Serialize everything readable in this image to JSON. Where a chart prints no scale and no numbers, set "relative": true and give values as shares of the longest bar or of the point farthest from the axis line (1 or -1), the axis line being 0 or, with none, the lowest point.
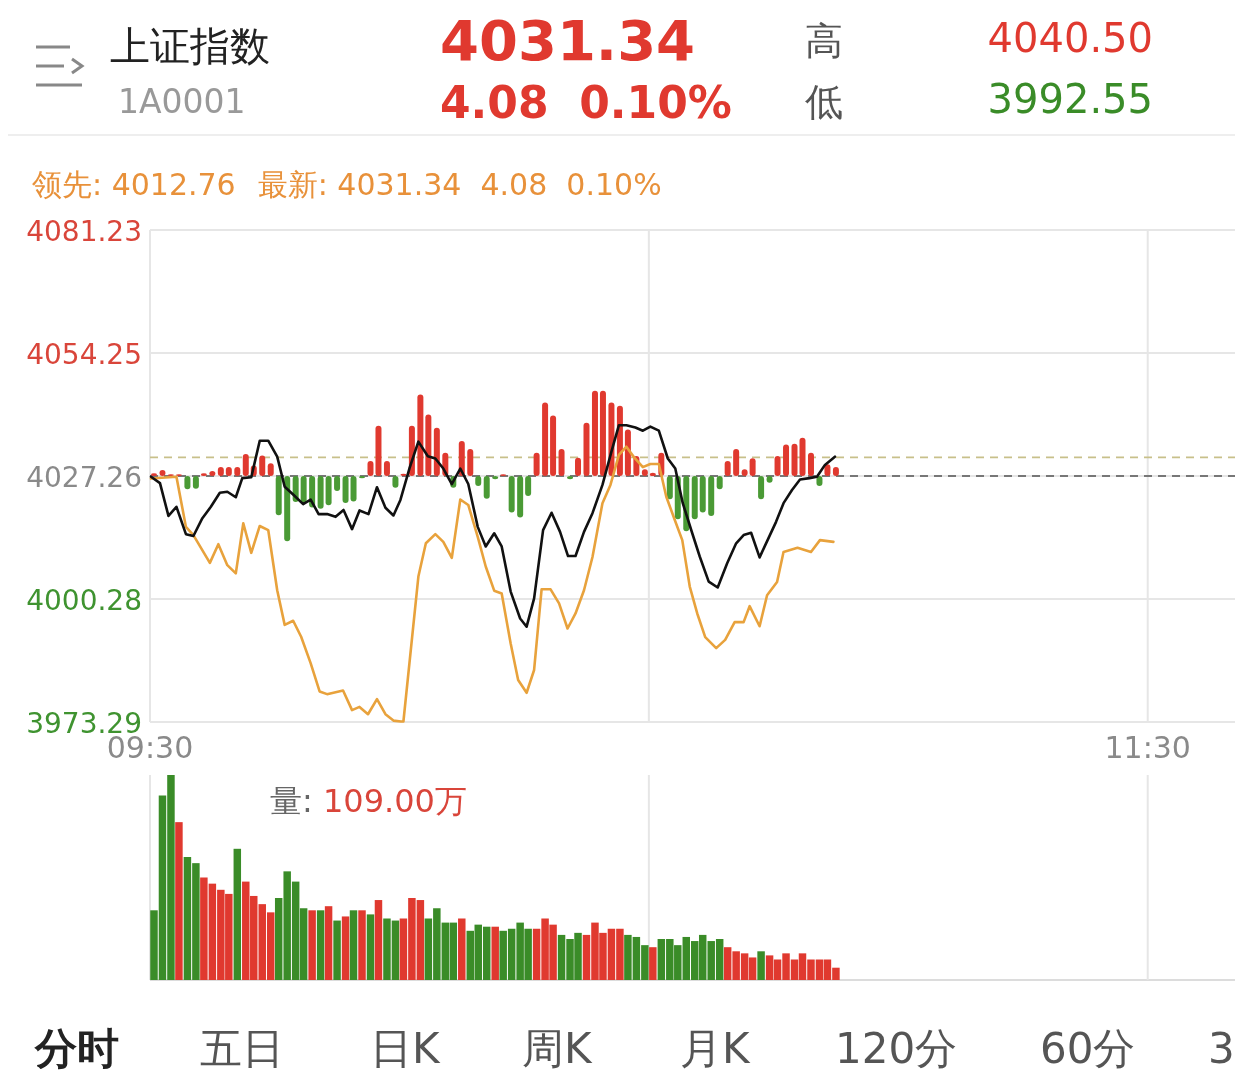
{
  "chart_data": [
    {
      "type": "other",
      "title": "上证指数",
      "subtitle": "1A0001",
      "annotations": [
        "4031.34",
        "4.08  0.10%",
        "高",
        "4040.50",
        "低",
        "3992.55"
      ]
    },
    {
      "type": "line",
      "annotations": [
        "领先: 4012.76",
        "最新: 4031.34  4.08  0.10%"
      ],
      "xlim": [
        9.5,
        11.675
      ],
      "xticks": [
        {
          "value": 9.5,
          "label": "09:30"
        },
        {
          "value": 10.5,
          "label": null
        },
        {
          "value": 11.5,
          "label": "11:30"
        }
      ],
      "ylim": [
        3973.29,
        4081.23
      ],
      "yticks": [
        3973.29,
        4000.28,
        4027.26,
        4054.25,
        4081.23
      ],
      "grid": true,
      "ref_lines": [
        {
          "axis": "y",
          "value": 4031.34,
          "color": "#c8c08a",
          "line_style": "dashed"
        },
        {
          "axis": "y",
          "value": 4027.26,
          "color": "#777777",
          "line_style": "dashed"
        }
      ],
      "series": [
        {
          "type": "bar",
          "x": [
            9.508,
            9.525,
            9.542,
            9.558,
            9.575,
            9.592,
            9.608,
            9.625,
            9.642,
            9.658,
            9.675,
            9.692,
            9.708,
            9.725,
            9.742,
            9.758,
            9.775,
            9.792,
            9.808,
            9.825,
            9.842,
            9.858,
            9.875,
            9.892,
            9.908,
            9.925,
            9.942,
            9.958,
            9.975,
            9.992,
            10.008,
            10.025,
            10.042,
            10.058,
            10.075,
            10.092,
            10.108,
            10.125,
            10.142,
            10.158,
            10.175,
            10.192,
            10.208,
            10.225,
            10.242,
            10.258,
            10.275,
            10.292,
            10.308,
            10.325,
            10.342,
            10.358,
            10.375,
            10.392,
            10.408,
            10.425,
            10.442,
            10.458,
            10.475,
            10.492,
            10.508,
            10.525,
            10.542,
            10.558,
            10.575,
            10.592,
            10.608,
            10.625,
            10.642,
            10.658,
            10.675,
            10.692,
            10.708,
            10.725,
            10.742,
            10.758,
            10.775,
            10.792,
            10.808,
            10.825,
            10.842,
            10.858,
            10.875
          ],
          "values": [
            0.6,
            1.3,
            0.4,
            0.4,
            -2.9,
            -2.8,
            0.6,
            1.1,
            2.0,
            2.0,
            2.0,
            4.8,
            2.3,
            4.5,
            2.8,
            -8.6,
            -14.3,
            -5.7,
            -5.9,
            -6.9,
            -7.2,
            -6.4,
            -3.3,
            -5.9,
            -5.6,
            -0.5,
            3.3,
            11.0,
            3.3,
            -2.6,
            0.5,
            11.0,
            17.9,
            13.5,
            10.6,
            5.1,
            -2.6,
            7.7,
            5.9,
            -2.2,
            -5.0,
            -0.7,
            0.4,
            -8.0,
            -9.1,
            -4.4,
            5.1,
            16.1,
            13.3,
            5.9,
            -0.7,
            4.0,
            11.7,
            18.7,
            18.7,
            16.1,
            15.4,
            10.2,
            4.4,
            1.5,
            0.7,
            5.1,
            -5.1,
            -9.5,
            -12.1,
            -9.5,
            -8.0,
            -8.8,
            -2.9,
            3.3,
            5.9,
            1.5,
            3.9,
            -5.1,
            -1.5,
            4.4,
            6.9,
            7.1,
            8.4,
            5.1,
            -2.2,
            2.6,
            2.0
          ],
          "base": [
            4027.26,
            4027.26,
            4027.26,
            4027.26,
            4027.26,
            4027.26,
            4027.26,
            4027.26,
            4027.26,
            4027.26,
            4027.26,
            4027.26,
            4027.26,
            4027.26,
            4027.26,
            4027.26,
            4027.26,
            4027.26,
            4027.26,
            4027.26,
            4027.26,
            4027.26,
            4027.26,
            4027.26,
            4027.26,
            4027.26,
            4027.26,
            4027.26,
            4027.26,
            4027.26,
            4027.26,
            4027.26,
            4027.26,
            4027.26,
            4027.26,
            4027.26,
            4027.26,
            4027.26,
            4027.26,
            4027.26,
            4027.26,
            4027.26,
            4027.26,
            4027.26,
            4027.26,
            4027.26,
            4027.26,
            4027.26,
            4027.26,
            4027.26,
            4027.26,
            4027.26,
            4027.26,
            4027.26,
            4027.26,
            4027.26,
            4027.26,
            4027.26,
            4027.26,
            4027.26,
            4027.26,
            4027.26,
            4027.26,
            4027.26,
            4027.26,
            4027.26,
            4027.26,
            4027.26,
            4027.26,
            4027.26,
            4027.26,
            4027.26,
            4027.26,
            4027.26,
            4027.26,
            4027.26,
            4027.26,
            4027.26,
            4027.26,
            4027.26,
            4027.26,
            4027.26,
            4027.26
          ],
          "colors": [
            "#e0392f",
            "#e0392f",
            "#e0392f",
            "#e0392f",
            "#4a9a35",
            "#4a9a35",
            "#e0392f",
            "#e0392f",
            "#e0392f",
            "#e0392f",
            "#e0392f",
            "#e0392f",
            "#e0392f",
            "#e0392f",
            "#e0392f",
            "#4a9a35",
            "#4a9a35",
            "#4a9a35",
            "#4a9a35",
            "#4a9a35",
            "#4a9a35",
            "#4a9a35",
            "#4a9a35",
            "#4a9a35",
            "#4a9a35",
            "#4a9a35",
            "#e0392f",
            "#e0392f",
            "#e0392f",
            "#4a9a35",
            "#e0392f",
            "#e0392f",
            "#e0392f",
            "#e0392f",
            "#e0392f",
            "#e0392f",
            "#4a9a35",
            "#e0392f",
            "#e0392f",
            "#4a9a35",
            "#4a9a35",
            "#4a9a35",
            "#e0392f",
            "#4a9a35",
            "#4a9a35",
            "#4a9a35",
            "#e0392f",
            "#e0392f",
            "#e0392f",
            "#e0392f",
            "#4a9a35",
            "#e0392f",
            "#e0392f",
            "#e0392f",
            "#e0392f",
            "#e0392f",
            "#e0392f",
            "#e0392f",
            "#e0392f",
            "#e0392f",
            "#e0392f",
            "#e0392f",
            "#4a9a35",
            "#4a9a35",
            "#4a9a35",
            "#4a9a35",
            "#4a9a35",
            "#4a9a35",
            "#4a9a35",
            "#e0392f",
            "#e0392f",
            "#e0392f",
            "#e0392f",
            "#4a9a35",
            "#4a9a35",
            "#e0392f",
            "#e0392f",
            "#e0392f",
            "#e0392f",
            "#e0392f",
            "#4a9a35",
            "#e0392f",
            "#e0392f"
          ]
        },
        {
          "type": "line",
          "color": "#e8a23c",
          "x": [
            9.502,
            9.553,
            9.572,
            9.587,
            9.62,
            9.637,
            9.655,
            9.672,
            9.687,
            9.703,
            9.72,
            9.737,
            9.755,
            9.77,
            9.787,
            9.803,
            9.822,
            9.84,
            9.855,
            9.887,
            9.905,
            9.92,
            9.937,
            9.955,
            9.972,
            9.988,
            10.003,
            10.008,
            10.038,
            10.053,
            10.072,
            10.088,
            10.105,
            10.122,
            10.138,
            10.157,
            10.173,
            10.19,
            10.205,
            10.223,
            10.238,
            10.255,
            10.27,
            10.285,
            10.303,
            10.32,
            10.337,
            10.353,
            10.37,
            10.387,
            10.407,
            10.423,
            10.44,
            10.455,
            10.47,
            10.488,
            10.503,
            10.52,
            10.535,
            10.552,
            10.567,
            10.582,
            10.597,
            10.613,
            10.635,
            10.653,
            10.672,
            10.69,
            10.702,
            10.722,
            10.737,
            10.757,
            10.77,
            10.798,
            10.825,
            10.843,
            10.87
          ],
          "values": [
            4026.7,
            4027.1,
            4016.1,
            4014.3,
            4008.2,
            4012.3,
            4007.7,
            4005.9,
            4016.9,
            4010.4,
            4016.3,
            4015.4,
            4002.2,
            3994.6,
            3995.5,
            3992.0,
            3986.2,
            3980.0,
            3979.4,
            3980.2,
            3975.9,
            3976.6,
            3975.0,
            3978.3,
            3975.0,
            3973.6,
            3973.4,
            3973.4,
            4005.2,
            4012.5,
            4014.5,
            4012.8,
            4009.3,
            4022.1,
            4020.9,
            4013.9,
            4007.4,
            4002.1,
            4001.5,
            3990.5,
            3982.5,
            3979.7,
            3984.7,
            4002.4,
            4002.4,
            3999.3,
            3993.8,
            3997.1,
            4002.2,
            4009.5,
            4021.3,
            4025.3,
            4031.9,
            4033.7,
            4031.4,
            4029.2,
            4029.9,
            4029.9,
            4022.7,
            4017.6,
            4013.2,
            4003.0,
            3997.1,
            3991.9,
            3989.5,
            3991.3,
            3995.2,
            3995.2,
            3998.7,
            3994.3,
            4001.1,
            4004.0,
            4010.6,
            4011.5,
            4010.6,
            4013.2,
            4012.8
          ]
        },
        {
          "type": "line",
          "color": "#111111",
          "x": [
            9.502,
            9.52,
            9.537,
            9.553,
            9.572,
            9.587,
            9.605,
            9.622,
            9.64,
            9.655,
            9.672,
            9.685,
            9.703,
            9.72,
            9.737,
            9.755,
            9.77,
            9.788,
            9.807,
            9.822,
            9.838,
            9.855,
            9.872,
            9.888,
            9.905,
            9.92,
            9.938,
            9.955,
            9.972,
            9.988,
            10.002,
            10.02,
            10.038,
            10.057,
            10.072,
            10.088,
            10.105,
            10.122,
            10.138,
            10.157,
            10.173,
            10.19,
            10.205,
            10.223,
            10.242,
            10.255,
            10.27,
            10.288,
            10.305,
            10.322,
            10.338,
            10.353,
            10.37,
            10.387,
            10.407,
            10.425,
            10.44,
            10.455,
            10.473,
            10.488,
            10.503,
            10.52,
            10.538,
            10.553,
            10.568,
            10.587,
            10.602,
            10.62,
            10.638,
            10.657,
            10.675,
            10.69,
            10.705,
            10.722,
            10.738,
            10.755,
            10.77,
            10.787,
            10.803,
            10.822,
            10.837,
            10.853,
            10.873
          ],
          "values": [
            4027.1,
            4025.7,
            4018.5,
            4020.5,
            4014.5,
            4014.1,
            4018.0,
            4020.5,
            4023.6,
            4023.8,
            4022.6,
            4026.8,
            4027.0,
            4035.0,
            4035.0,
            4031.5,
            4024.9,
            4023.1,
            4021.1,
            4022.1,
            4018.9,
            4018.9,
            4018.3,
            4019.8,
            4015.6,
            4019.7,
            4018.9,
            4024.8,
            4020.3,
            4018.6,
            4022.0,
            4028.9,
            4034.8,
            4031.6,
            4031.1,
            4028.9,
            4025.5,
            4028.9,
            4025.5,
            4016.1,
            4011.8,
            4014.7,
            4011.8,
            4001.9,
            3996.0,
            3994.2,
            4000.4,
            4015.4,
            4019.2,
            4015.0,
            4009.7,
            4009.7,
            4015.0,
            4019.1,
            4025.3,
            4032.6,
            4038.4,
            4038.4,
            4037.9,
            4037.2,
            4038.1,
            4037.2,
            4031.1,
            4028.9,
            4021.3,
            4014.7,
            4009.6,
            4004.1,
            4002.8,
            4008.1,
            4012.5,
            4014.3,
            4014.8,
            4009.4,
            4013.2,
            4017.2,
            4021.3,
            4024.2,
            4026.5,
            4026.8,
            4027.1,
            4029.7,
            4031.5
          ]
        }
      ]
    },
    {
      "type": "bar",
      "relative": true,
      "annotations": [
        "量: 109.00万"
      ],
      "tick_labels": false,
      "grid": "x",
      "xlim": [
        9.5,
        11.675
      ],
      "xticks": [
        {
          "value": 9.5,
          "label": null
        },
        {
          "value": 10.5,
          "label": null
        },
        {
          "value": 11.5,
          "label": null
        }
      ],
      "x": [
        9.508,
        9.525,
        9.542,
        9.558,
        9.575,
        9.592,
        9.608,
        9.625,
        9.642,
        9.658,
        9.675,
        9.692,
        9.708,
        9.725,
        9.742,
        9.758,
        9.775,
        9.792,
        9.808,
        9.825,
        9.842,
        9.858,
        9.875,
        9.892,
        9.908,
        9.925,
        9.942,
        9.958,
        9.975,
        9.992,
        10.008,
        10.025,
        10.042,
        10.058,
        10.075,
        10.092,
        10.108,
        10.125,
        10.142,
        10.158,
        10.175,
        10.192,
        10.208,
        10.225,
        10.242,
        10.258,
        10.275,
        10.292,
        10.308,
        10.325,
        10.342,
        10.358,
        10.375,
        10.392,
        10.408,
        10.425,
        10.442,
        10.458,
        10.475,
        10.492,
        10.508,
        10.525,
        10.542,
        10.558,
        10.575,
        10.592,
        10.608,
        10.625,
        10.642,
        10.658,
        10.675,
        10.692,
        10.708,
        10.725,
        10.742,
        10.758,
        10.775,
        10.792,
        10.808,
        10.825,
        10.842,
        10.858,
        10.875
      ],
      "values": [
        0.34,
        0.9,
        1,
        0.77,
        0.6,
        0.57,
        0.5,
        0.47,
        0.44,
        0.42,
        0.64,
        0.48,
        0.41,
        0.37,
        0.33,
        0.4,
        0.53,
        0.48,
        0.35,
        0.34,
        0.34,
        0.36,
        0.29,
        0.31,
        0.34,
        0.34,
        0.32,
        0.39,
        0.3,
        0.29,
        0.3,
        0.4,
        0.39,
        0.3,
        0.35,
        0.28,
        0.28,
        0.3,
        0.24,
        0.27,
        0.26,
        0.26,
        0.24,
        0.25,
        0.28,
        0.25,
        0.25,
        0.3,
        0.27,
        0.22,
        0.2,
        0.23,
        0.22,
        0.28,
        0.23,
        0.25,
        0.25,
        0.22,
        0.21,
        0.17,
        0.16,
        0.2,
        0.2,
        0.17,
        0.21,
        0.19,
        0.22,
        0.19,
        0.2,
        0.16,
        0.14,
        0.13,
        0.11,
        0.14,
        0.12,
        0.1,
        0.13,
        0.1,
        0.13,
        0.1,
        0.1,
        0.1,
        0.06
      ],
      "colors": [
        "#3a8c28",
        "#3a8c28",
        "#3a8c28",
        "#e0392f",
        "#3a8c28",
        "#3a8c28",
        "#e0392f",
        "#e0392f",
        "#e0392f",
        "#e0392f",
        "#3a8c28",
        "#e0392f",
        "#e0392f",
        "#e0392f",
        "#e0392f",
        "#3a8c28",
        "#3a8c28",
        "#3a8c28",
        "#3a8c28",
        "#e0392f",
        "#3a8c28",
        "#e0392f",
        "#3a8c28",
        "#e0392f",
        "#3a8c28",
        "#e0392f",
        "#3a8c28",
        "#e0392f",
        "#3a8c28",
        "#3a8c28",
        "#e0392f",
        "#e0392f",
        "#e0392f",
        "#3a8c28",
        "#3a8c28",
        "#3a8c28",
        "#3a8c28",
        "#e0392f",
        "#3a8c28",
        "#3a8c28",
        "#3a8c28",
        "#e0392f",
        "#3a8c28",
        "#3a8c28",
        "#3a8c28",
        "#3a8c28",
        "#e0392f",
        "#e0392f",
        "#e0392f",
        "#3a8c28",
        "#3a8c28",
        "#3a8c28",
        "#e0392f",
        "#e0392f",
        "#e0392f",
        "#e0392f",
        "#e0392f",
        "#3a8c28",
        "#3a8c28",
        "#3a8c28",
        "#e0392f",
        "#3a8c28",
        "#3a8c28",
        "#3a8c28",
        "#3a8c28",
        "#3a8c28",
        "#3a8c28",
        "#3a8c28",
        "#3a8c28",
        "#e0392f",
        "#e0392f",
        "#e0392f",
        "#e0392f",
        "#3a8c28",
        "#e0392f",
        "#e0392f",
        "#e0392f",
        "#e0392f",
        "#e0392f",
        "#e0392f",
        "#e0392f",
        "#e0392f",
        "#e0392f"
      ]
    },
    {
      "type": "other",
      "annotations": [
        "分时",
        "五日",
        "日K",
        "周K",
        "月K",
        "120分",
        "60分",
        "3"
      ]
    }
  ]
}
